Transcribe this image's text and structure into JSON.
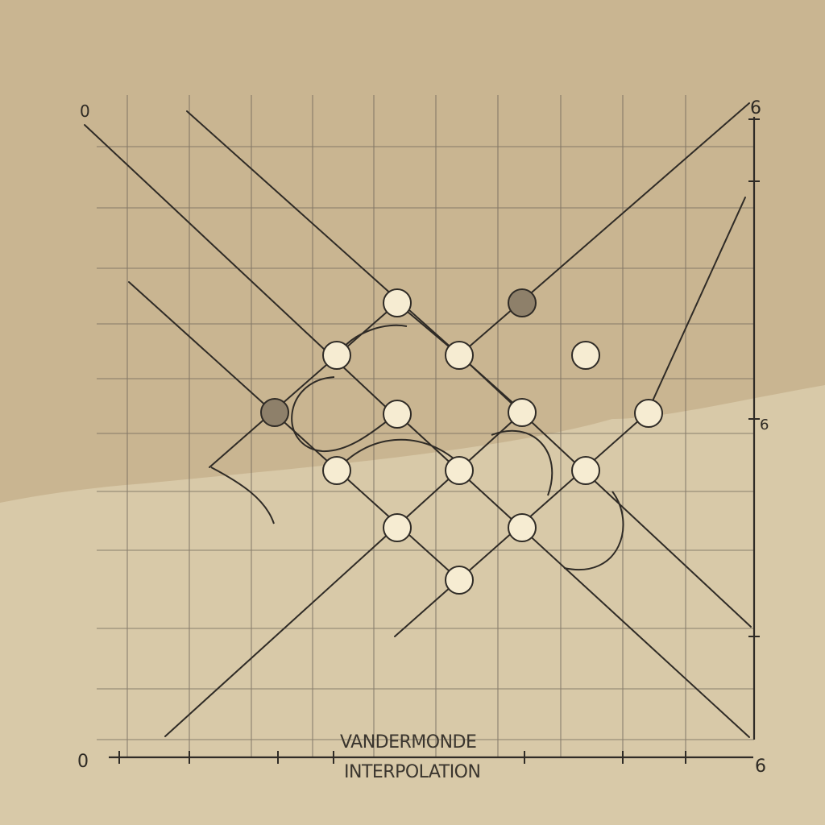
{
  "corner_labels": {
    "top_left": "0",
    "top_right": "6",
    "right_middle": "6",
    "bottom_left": "0",
    "bottom_right": "6"
  },
  "caption": {
    "line1": "VANDERMONDE",
    "line2": "INTERPOLATION"
  },
  "colors": {
    "paper_upper": "#c9b591",
    "paper_lower": "#d8c9a8",
    "grid": "#6f665a",
    "line": "#2f2b26",
    "node_fill": "#f6ecd2",
    "node_dark": "#8e806a"
  }
}
